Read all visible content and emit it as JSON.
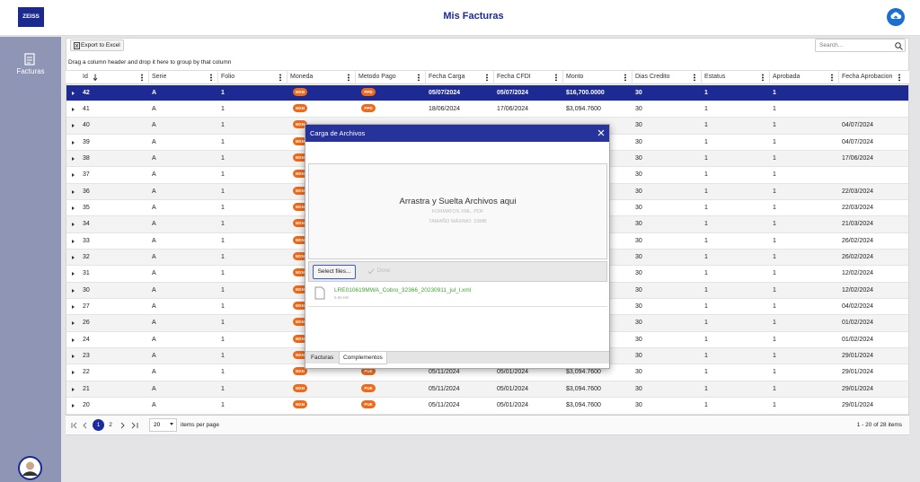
{
  "header": {
    "logo": "ZEISS",
    "title": "Mis Facturas"
  },
  "sidebar": {
    "menu_item": "Facturas"
  },
  "toolbar": {
    "export_button": "Export to Excel",
    "search_placeholder": "Search..."
  },
  "group_hint": "Drag a column header and drop it here to group by that column",
  "table": {
    "columns": [
      "Id",
      "Serie",
      "Folio",
      "Moneda",
      "Metodo Pago",
      "Fecha Carga",
      "Fecha CFDI",
      "Monto",
      "Dias Credito",
      "Estatus",
      "Aprobada",
      "Fecha Aprobacion"
    ],
    "rows": [
      [
        "42",
        "A",
        "1",
        "MXN",
        "PPD",
        "05/07/2024",
        "05/07/2024",
        "$16,700.0000",
        "30",
        "1",
        "1",
        null
      ],
      [
        "41",
        "A",
        "1",
        "MXN",
        "PPD",
        "18/06/2024",
        "17/06/2024",
        "$3,094.7600",
        "30",
        "1",
        "1",
        null
      ],
      [
        "40",
        "A",
        "1",
        "MXN",
        null,
        null,
        null,
        null,
        "30",
        "1",
        "1",
        "04/07/2024"
      ],
      [
        "39",
        "A",
        "1",
        "MXN",
        null,
        null,
        null,
        null,
        "30",
        "1",
        "1",
        "04/07/2024"
      ],
      [
        "38",
        "A",
        "1",
        "MXN",
        null,
        null,
        null,
        null,
        "30",
        "1",
        "1",
        "17/06/2024"
      ],
      [
        "37",
        "A",
        "1",
        "MXN",
        null,
        null,
        null,
        null,
        "30",
        "1",
        "1",
        null
      ],
      [
        "36",
        "A",
        "1",
        "MXN",
        null,
        null,
        null,
        null,
        "30",
        "1",
        "1",
        "22/03/2024"
      ],
      [
        "35",
        "A",
        "1",
        "MXN",
        null,
        null,
        null,
        null,
        "30",
        "1",
        "1",
        "22/03/2024"
      ],
      [
        "34",
        "A",
        "1",
        "MXN",
        null,
        null,
        null,
        null,
        "30",
        "1",
        "1",
        "21/03/2024"
      ],
      [
        "33",
        "A",
        "1",
        "MXN",
        null,
        null,
        null,
        null,
        "30",
        "1",
        "1",
        "26/02/2024"
      ],
      [
        "32",
        "A",
        "1",
        "MXN",
        null,
        null,
        null,
        null,
        "30",
        "1",
        "1",
        "26/02/2024"
      ],
      [
        "31",
        "A",
        "1",
        "MXN",
        null,
        null,
        null,
        null,
        "30",
        "1",
        "1",
        "12/02/2024"
      ],
      [
        "30",
        "A",
        "1",
        "MXN",
        null,
        null,
        null,
        null,
        "30",
        "1",
        "1",
        "12/02/2024"
      ],
      [
        "27",
        "A",
        "1",
        "MXN",
        null,
        null,
        null,
        null,
        "30",
        "1",
        "1",
        "04/02/2024"
      ],
      [
        "26",
        "A",
        "1",
        "MXN",
        null,
        null,
        null,
        null,
        "30",
        "1",
        "1",
        "01/02/2024"
      ],
      [
        "24",
        "A",
        "1",
        "MXN",
        null,
        null,
        null,
        null,
        "30",
        "1",
        "1",
        "01/02/2024"
      ],
      [
        "23",
        "A",
        "1",
        "MXN",
        null,
        null,
        null,
        null,
        "30",
        "1",
        "1",
        "29/01/2024"
      ],
      [
        "22",
        "A",
        "1",
        "MXN",
        "PUE",
        "05/11/2024",
        "05/01/2024",
        "$3,094.7600",
        "30",
        "1",
        "1",
        "29/01/2024"
      ],
      [
        "21",
        "A",
        "1",
        "MXN",
        "PUE",
        "05/11/2024",
        "05/01/2024",
        "$3,094.7600",
        "30",
        "1",
        "1",
        "29/01/2024"
      ],
      [
        "20",
        "A",
        "1",
        "MXN",
        "PUE",
        "05/11/2024",
        "05/01/2024",
        "$3,094.7600",
        "30",
        "1",
        "1",
        "29/01/2024"
      ]
    ]
  },
  "pager": {
    "pages": [
      "1",
      "2"
    ],
    "page_size": "20",
    "page_size_label": "items per page",
    "summary": "1 - 20 of 28 items"
  },
  "modal": {
    "title": "Carga de Archivos",
    "drop_title": "Arrastra y Suelta Archivos aqui",
    "formats": "FORMATOS XML, PDF",
    "max_size": "TAMAÑO MÁXIMO: 10MB",
    "select_button": "Select files...",
    "done_button": "Done",
    "file_name": "LRE010619MWA_Cobro_32366_20230911_jul_l.xml",
    "file_size": "5.66 KB",
    "tabs": [
      "Facturas",
      "Complementos"
    ]
  }
}
